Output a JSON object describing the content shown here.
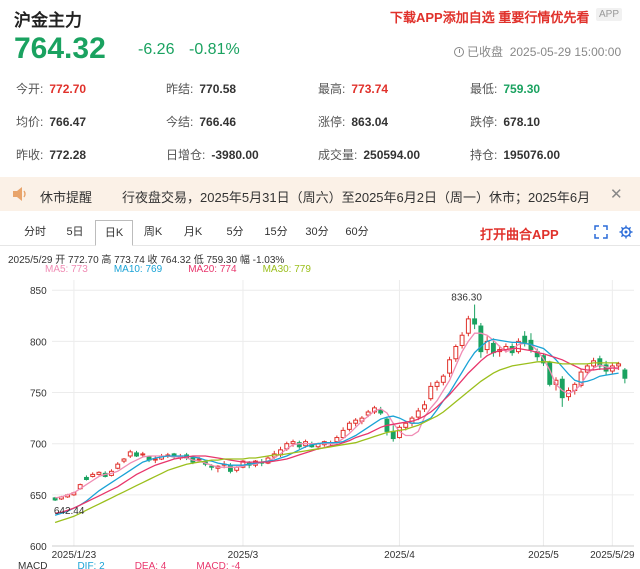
{
  "header": {
    "title": "沪金主力",
    "promo": "下载APP添加自选 重要行情优先看",
    "app_badge": "APP"
  },
  "quote": {
    "price": "764.32",
    "change": "-6.26",
    "change_pct": "-0.81%",
    "status": "已收盘",
    "datetime": "2025-05-29 15:00:00"
  },
  "stats": [
    [
      {
        "label": "今开:",
        "value": "772.70",
        "color": "red"
      },
      {
        "label": "昨结:",
        "value": "770.58",
        "color": "normal"
      },
      {
        "label": "最高:",
        "value": "773.74",
        "color": "red"
      },
      {
        "label": "最低:",
        "value": "759.30",
        "color": "green"
      }
    ],
    [
      {
        "label": "均价:",
        "value": "766.47",
        "color": "normal"
      },
      {
        "label": "今结:",
        "value": "766.46",
        "color": "normal"
      },
      {
        "label": "涨停:",
        "value": "863.04",
        "color": "normal"
      },
      {
        "label": "跌停:",
        "value": "678.10",
        "color": "normal"
      }
    ],
    [
      {
        "label": "昨收:",
        "value": "772.28",
        "color": "normal"
      },
      {
        "label": "日增仓:",
        "value": "-3980.00",
        "color": "normal"
      },
      {
        "label": "成交量:",
        "value": "250594.00",
        "color": "normal"
      },
      {
        "label": "持仓:",
        "value": "195076.00",
        "color": "normal"
      }
    ]
  ],
  "notice": {
    "title": "休市提醒",
    "message": "行夜盘交易，2025年5月31日（周六）至2025年6月2日（周一）休市；2025年6月"
  },
  "tabs": [
    "分时",
    "5日",
    "日K",
    "周K",
    "月K",
    "5分",
    "15分",
    "30分",
    "60分"
  ],
  "active_tab": "日K",
  "open_app": "打开曲合APP",
  "ohlc_line": "2025/5/29  开 772.70  高 773.74  收 764.32  低 759.30  幅 -1.03%",
  "ma_labels": [
    {
      "text": "MA5: 773",
      "color": "#f08cb4"
    },
    {
      "text": "MA10: 769",
      "color": "#1aa3d6"
    },
    {
      "text": "MA20: 774",
      "color": "#e8366c"
    },
    {
      "text": "MA30: 779",
      "color": "#9bbf1c"
    }
  ],
  "macd_labels": [
    {
      "text": "MACD",
      "color": "#333"
    },
    {
      "text": "DIF: 2",
      "color": "#1aa3d6"
    },
    {
      "text": "DEA: 4",
      "color": "#e8366c"
    },
    {
      "text": "MACD: -4",
      "color": "#e8366c"
    }
  ],
  "colors": {
    "up": "#e0312b",
    "down": "#1aa260",
    "accent": "#e0312b"
  },
  "chart_data": {
    "type": "candlestick",
    "ylim": [
      600,
      860
    ],
    "yticks": [
      600,
      650,
      700,
      750,
      800,
      850
    ],
    "xticks": [
      "2025/1/23",
      "2025/3",
      "2025/4",
      "2025/5",
      "2025/5/29"
    ],
    "annotations": [
      {
        "text": "836.30"
      },
      {
        "text": "642.44"
      }
    ],
    "candles": [
      [
        647,
        645,
        644,
        648
      ],
      [
        646,
        648,
        645,
        649
      ],
      [
        648,
        650,
        647,
        651
      ],
      [
        650,
        652,
        649,
        653
      ],
      [
        656,
        660,
        655,
        661
      ],
      [
        667,
        665,
        664,
        669
      ],
      [
        668,
        670,
        667,
        672
      ],
      [
        670,
        672,
        669,
        673
      ],
      [
        671,
        668,
        667,
        673
      ],
      [
        669,
        673,
        668,
        675
      ],
      [
        676,
        680,
        675,
        682
      ],
      [
        683,
        685,
        681,
        686
      ],
      [
        688,
        692,
        686,
        694
      ],
      [
        691,
        688,
        687,
        693
      ],
      [
        689,
        690,
        687,
        692
      ],
      [
        687,
        684,
        682,
        688
      ],
      [
        684,
        685,
        681,
        688
      ],
      [
        685,
        688,
        684,
        690
      ],
      [
        688,
        689,
        686,
        691
      ],
      [
        690,
        687,
        685,
        691
      ],
      [
        686,
        688,
        684,
        690
      ],
      [
        689,
        686,
        684,
        691
      ],
      [
        686,
        682,
        680,
        688
      ],
      [
        684,
        685,
        682,
        687
      ],
      [
        682,
        680,
        678,
        684
      ],
      [
        678,
        677,
        674,
        680
      ],
      [
        676,
        678,
        672,
        679
      ],
      [
        679,
        680,
        676,
        683
      ],
      [
        679,
        673,
        671,
        681
      ],
      [
        674,
        677,
        672,
        678
      ],
      [
        677,
        683,
        676,
        684
      ],
      [
        681,
        679,
        676,
        683
      ],
      [
        679,
        683,
        677,
        684
      ],
      [
        682,
        681,
        678,
        685
      ],
      [
        681,
        686,
        680,
        688
      ],
      [
        687,
        690,
        685,
        693
      ],
      [
        689,
        694,
        687,
        697
      ],
      [
        695,
        700,
        693,
        702
      ],
      [
        700,
        702,
        697,
        704
      ],
      [
        701,
        697,
        695,
        703
      ],
      [
        698,
        702,
        696,
        704
      ],
      [
        700,
        697,
        696,
        702
      ],
      [
        697,
        700,
        694,
        701
      ],
      [
        699,
        702,
        697,
        703
      ],
      [
        700,
        701,
        697,
        703
      ],
      [
        702,
        706,
        700,
        708
      ],
      [
        706,
        713,
        705,
        716
      ],
      [
        714,
        720,
        712,
        722
      ],
      [
        720,
        723,
        717,
        725
      ],
      [
        722,
        725,
        719,
        727
      ],
      [
        728,
        731,
        726,
        733
      ],
      [
        731,
        735,
        729,
        737
      ],
      [
        733,
        730,
        728,
        736
      ],
      [
        724,
        712,
        708,
        726
      ],
      [
        712,
        705,
        702,
        718
      ],
      [
        706,
        716,
        705,
        718
      ],
      [
        716,
        720,
        713,
        722
      ],
      [
        720,
        725,
        717,
        727
      ],
      [
        726,
        732,
        723,
        735
      ],
      [
        734,
        738,
        731,
        742
      ],
      [
        744,
        756,
        742,
        760
      ],
      [
        756,
        760,
        752,
        762
      ],
      [
        760,
        766,
        757,
        768
      ],
      [
        769,
        782,
        765,
        785
      ],
      [
        783,
        795,
        780,
        797
      ],
      [
        796,
        806,
        793,
        809
      ],
      [
        808,
        822,
        805,
        825
      ],
      [
        822,
        817,
        812,
        836
      ],
      [
        815,
        790,
        784,
        818
      ],
      [
        792,
        800,
        788,
        805
      ],
      [
        798,
        789,
        785,
        803
      ],
      [
        790,
        792,
        785,
        796
      ],
      [
        792,
        795,
        789,
        798
      ],
      [
        795,
        789,
        786,
        798
      ],
      [
        790,
        800,
        788,
        803
      ],
      [
        805,
        799,
        795,
        810
      ],
      [
        801,
        792,
        789,
        808
      ],
      [
        790,
        785,
        781,
        793
      ],
      [
        786,
        779,
        776,
        788
      ],
      [
        779,
        758,
        756,
        781
      ],
      [
        758,
        762,
        752,
        765
      ],
      [
        763,
        745,
        736,
        766
      ],
      [
        746,
        752,
        742,
        755
      ],
      [
        752,
        758,
        748,
        760
      ],
      [
        757,
        770,
        755,
        773
      ],
      [
        770,
        776,
        767,
        778
      ],
      [
        776,
        781,
        772,
        784
      ],
      [
        783,
        776,
        772,
        786
      ],
      [
        777,
        771,
        767,
        781
      ],
      [
        771,
        776,
        768,
        779
      ],
      [
        776,
        778,
        772,
        780
      ],
      [
        772,
        764,
        759,
        774
      ]
    ],
    "ma_series": [
      {
        "name": "MA5",
        "color": "#f08cb4",
        "values": [
          647,
          648,
          650,
          652,
          656,
          660,
          664,
          668,
          670,
          671,
          673,
          677,
          681,
          684,
          687,
          688,
          688,
          688,
          688,
          687,
          687,
          686,
          684,
          683,
          681,
          679,
          677,
          677,
          677,
          677,
          678,
          680,
          680,
          682,
          683,
          686,
          690,
          695,
          699,
          700,
          700,
          700,
          700,
          700,
          700,
          701,
          705,
          710,
          716,
          722,
          727,
          732,
          734,
          730,
          720,
          712,
          708,
          708,
          712,
          726,
          735,
          742,
          752,
          762,
          776,
          790,
          800,
          808,
          808,
          806,
          801,
          795,
          790,
          792,
          797,
          798,
          797,
          791,
          783,
          772,
          758,
          752,
          749,
          752,
          758,
          768,
          774,
          777,
          775,
          774,
          773
        ]
      },
      {
        "name": "MA10",
        "color": "#1aa3d6",
        "values": [
          630,
          632,
          634,
          637,
          640,
          644,
          649,
          654,
          658,
          662,
          666,
          670,
          674,
          678,
          682,
          684,
          686,
          687,
          688,
          688,
          688,
          688,
          687,
          686,
          684,
          683,
          681,
          680,
          679,
          679,
          679,
          680,
          681,
          682,
          683,
          684,
          686,
          688,
          691,
          694,
          697,
          699,
          700,
          701,
          701,
          701,
          702,
          705,
          708,
          712,
          716,
          720,
          724,
          726,
          727,
          725,
          722,
          720,
          720,
          722,
          725,
          733,
          742,
          750,
          760,
          770,
          780,
          789,
          795,
          800,
          802,
          801,
          800,
          799,
          799,
          798,
          797,
          795,
          793,
          788,
          782,
          775,
          768,
          762,
          760,
          761,
          763,
          766,
          767,
          768,
          769
        ]
      },
      {
        "name": "MA20",
        "color": "#e8366c",
        "values": [
          632,
          633,
          635,
          637,
          640,
          643,
          646,
          649,
          652,
          655,
          658,
          662,
          666,
          670,
          673,
          676,
          679,
          681,
          683,
          685,
          686,
          687,
          688,
          688,
          688,
          687,
          686,
          685,
          684,
          683,
          682,
          682,
          682,
          682,
          682,
          683,
          684,
          685,
          687,
          689,
          691,
          693,
          695,
          696,
          698,
          699,
          701,
          703,
          706,
          708,
          710,
          713,
          716,
          718,
          719,
          720,
          721,
          722,
          724,
          727,
          731,
          736,
          742,
          748,
          755,
          762,
          769,
          775,
          781,
          786,
          789,
          791,
          792,
          793,
          793,
          792,
          791,
          789,
          788,
          786,
          784,
          782,
          779,
          776,
          773,
          772,
          772,
          773,
          773,
          774,
          774
        ]
      },
      {
        "name": "MA30",
        "color": "#9bbf1c",
        "values": [
          623,
          625,
          627,
          629,
          632,
          635,
          638,
          641,
          644,
          647,
          650,
          653,
          656,
          659,
          662,
          665,
          668,
          671,
          674,
          676,
          678,
          680,
          681,
          682,
          683,
          684,
          684,
          685,
          685,
          685,
          685,
          686,
          686,
          687,
          688,
          689,
          689,
          690,
          691,
          692,
          693,
          694,
          695,
          696,
          697,
          698,
          699,
          700,
          701,
          703,
          705,
          707,
          709,
          711,
          712,
          713,
          714,
          716,
          718,
          721,
          724,
          727,
          731,
          736,
          741,
          746,
          751,
          756,
          761,
          765,
          769,
          772,
          774,
          776,
          777,
          778,
          779,
          780,
          780,
          780,
          779,
          778,
          778,
          778,
          778,
          778,
          779,
          779,
          779,
          779,
          779
        ]
      }
    ]
  }
}
